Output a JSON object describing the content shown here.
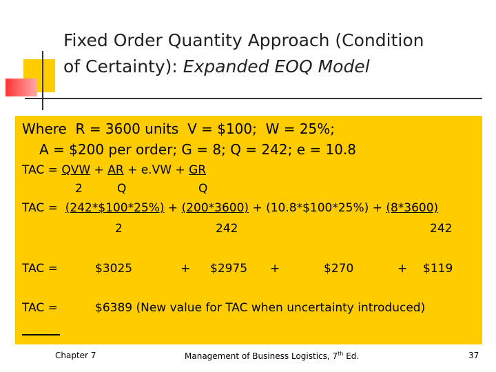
{
  "title": {
    "line1": "Fixed Order Quantity Approach (Condition",
    "line2": "of Certainty): ",
    "line2_italic": "Expanded EOQ Model"
  },
  "given": [
    "Where  R = 3600 units  V = $100;  W = 25%;",
    "A = $200 per order; G = 8; Q = 242; e = 10.8"
  ],
  "formula": {
    "top": [
      "TAC = ",
      "QVW",
      " + ",
      "AR",
      " + e.VW + ",
      "GR"
    ],
    "denominators": [
      "2",
      "Q",
      "Q"
    ]
  },
  "substitution": {
    "top": [
      "TAC =  ",
      "(242*$100*25%)",
      " + ",
      "(200*3600)",
      " + (10.8*$100*25%) + ",
      "(8*3600)"
    ],
    "denominators": [
      "2",
      "242",
      "242"
    ]
  },
  "result": {
    "label": "TAC =",
    "terms": [
      "$3025",
      "+",
      "$2975",
      "+",
      "$270",
      "+",
      "$119"
    ]
  },
  "total": {
    "label": "TAC =",
    "text": "$6389 (New value for TAC when uncertainty introduced)"
  },
  "footer": {
    "chapter": "Chapter 7",
    "book": "Management of Business Logistics, 7",
    "book_sup": "th",
    "book_end": " Ed.",
    "page": "37"
  }
}
